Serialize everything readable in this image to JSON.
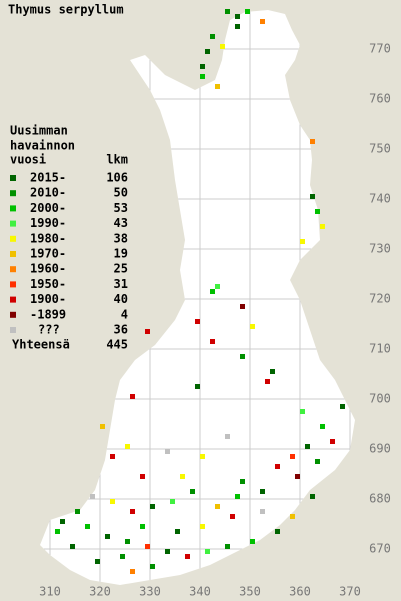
{
  "title": "Thymus serpyllum",
  "legend": {
    "heading": [
      "Uusimman",
      "havainnon",
      "vuosi"
    ],
    "count_heading": "lkm",
    "items": [
      {
        "label": "2015-",
        "count": 106,
        "color": "#006400"
      },
      {
        "label": "2010-",
        "count": 50,
        "color": "#009000"
      },
      {
        "label": "2000-",
        "count": 53,
        "color": "#00c000"
      },
      {
        "label": "1990-",
        "count": 43,
        "color": "#40f040"
      },
      {
        "label": "1980-",
        "count": 38,
        "color": "#f8f800"
      },
      {
        "label": "1970-",
        "count": 19,
        "color": "#f0c000"
      },
      {
        "label": "1960-",
        "count": 25,
        "color": "#ff8000"
      },
      {
        "label": "1950-",
        "count": 31,
        "color": "#ff3000"
      },
      {
        "label": "1900-",
        "count": 40,
        "color": "#d00000"
      },
      {
        "label": "-1899",
        "count": 4,
        "color": "#800000"
      },
      {
        "label": "???",
        "count": 36,
        "color": "#c0c0c0"
      }
    ],
    "total_label": "Yhteensä",
    "total": 445
  },
  "map": {
    "xticks": [
      310,
      320,
      330,
      340,
      350,
      360,
      370
    ],
    "yticks": [
      670,
      680,
      690,
      700,
      710,
      720,
      730,
      740,
      750,
      760,
      770
    ],
    "squares": [
      [
        345,
        777,
        1
      ],
      [
        347,
        776,
        0
      ],
      [
        349,
        777,
        2
      ],
      [
        347,
        774,
        0
      ],
      [
        342,
        772,
        1
      ],
      [
        340,
        766,
        0
      ],
      [
        341,
        769,
        0
      ],
      [
        340,
        764,
        2
      ],
      [
        344,
        770,
        4
      ],
      [
        352,
        775,
        6
      ],
      [
        343,
        762,
        5
      ],
      [
        362,
        740,
        0
      ],
      [
        363,
        737,
        2
      ],
      [
        364,
        734,
        4
      ],
      [
        360,
        731,
        4
      ],
      [
        362,
        751,
        6
      ],
      [
        343,
        722,
        3
      ],
      [
        342,
        721,
        2
      ],
      [
        348,
        718,
        9
      ],
      [
        350,
        714,
        4
      ],
      [
        342,
        711,
        8
      ],
      [
        339,
        715,
        8
      ],
      [
        329,
        713,
        8
      ],
      [
        348,
        708,
        1
      ],
      [
        353,
        703,
        8
      ],
      [
        354,
        705,
        0
      ],
      [
        339,
        702,
        0
      ],
      [
        360,
        697,
        3
      ],
      [
        368,
        698,
        0
      ],
      [
        364,
        694,
        2
      ],
      [
        366,
        691,
        8
      ],
      [
        361,
        690,
        0
      ],
      [
        358,
        688,
        7
      ],
      [
        363,
        687,
        1
      ],
      [
        355,
        686,
        8
      ],
      [
        359,
        684,
        9
      ],
      [
        345,
        692,
        10
      ],
      [
        340,
        688,
        4
      ],
      [
        333,
        689,
        10
      ],
      [
        325,
        690,
        4
      ],
      [
        322,
        688,
        8
      ],
      [
        348,
        683,
        1
      ],
      [
        352,
        681,
        0
      ],
      [
        347,
        680,
        2
      ],
      [
        343,
        678,
        5
      ],
      [
        338,
        681,
        1
      ],
      [
        334,
        679,
        3
      ],
      [
        330,
        678,
        0
      ],
      [
        326,
        677,
        8
      ],
      [
        322,
        679,
        4
      ],
      [
        318,
        680,
        10
      ],
      [
        315,
        677,
        1
      ],
      [
        312,
        675,
        0
      ],
      [
        317,
        674,
        2
      ],
      [
        321,
        672,
        0
      ],
      [
        325,
        671,
        1
      ],
      [
        329,
        670,
        7
      ],
      [
        333,
        669,
        0
      ],
      [
        337,
        668,
        8
      ],
      [
        341,
        669,
        3
      ],
      [
        345,
        670,
        1
      ],
      [
        350,
        671,
        2
      ],
      [
        355,
        673,
        0
      ],
      [
        358,
        676,
        5
      ],
      [
        362,
        680,
        0
      ],
      [
        335,
        673,
        0
      ],
      [
        328,
        674,
        2
      ],
      [
        324,
        668,
        1
      ],
      [
        319,
        667,
        0
      ],
      [
        330,
        666,
        1
      ],
      [
        326,
        665,
        6
      ],
      [
        340,
        674,
        4
      ],
      [
        346,
        676,
        8
      ],
      [
        314,
        670,
        0
      ],
      [
        311,
        673,
        2
      ],
      [
        352,
        677,
        10
      ],
      [
        336,
        684,
        4
      ],
      [
        328,
        684,
        8
      ],
      [
        326,
        700,
        8
      ],
      [
        320,
        694,
        5
      ]
    ]
  }
}
